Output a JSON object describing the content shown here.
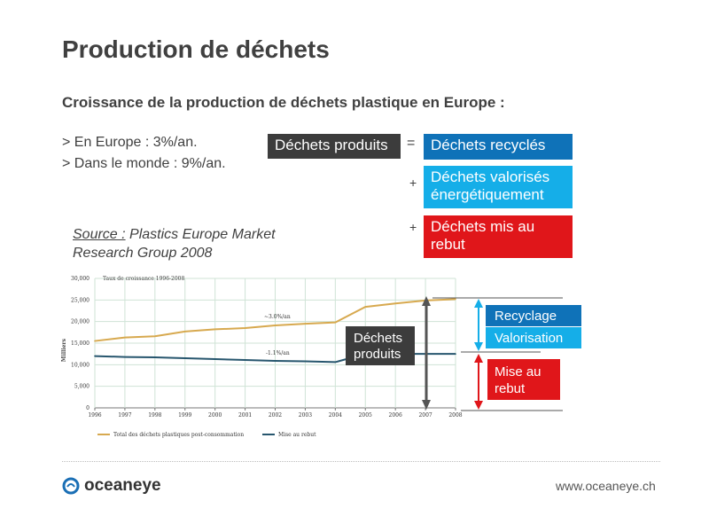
{
  "slide": {
    "title": "Production de déchets",
    "subtitle": "Croissance de la production de déchets plastique en Europe :",
    "stats": [
      "> En Europe : 3%/an.",
      "> Dans le monde : 9%/an."
    ]
  },
  "equation": {
    "produits": "Déchets produits",
    "equals": "=",
    "plus": "+",
    "recycles": "Déchets recyclés",
    "valorises_line1": "Déchets valorisés",
    "valorises_line2": "énergétiquement",
    "rebut_line1": "Déchets mis au",
    "rebut_line2": "rebut"
  },
  "source": {
    "label": "Source :",
    "line1": " Plastics Europe Market",
    "line2": "Research Group 2008"
  },
  "chart_data": {
    "type": "line",
    "title": "Taux de croissance 1996-2008",
    "ylabel": "Milliers",
    "ylim": [
      0,
      30000
    ],
    "yticks": [
      "0",
      "5,000",
      "10,000",
      "15,000",
      "20,000",
      "25,000",
      "30,000"
    ],
    "x": [
      "1996",
      "1997",
      "1998",
      "1999",
      "2000",
      "2001",
      "2002",
      "2003",
      "2004",
      "2005",
      "2006",
      "2007",
      "2008"
    ],
    "series": [
      {
        "name": "Total des déchets plastiques post-consommation",
        "color": "#d7a94f",
        "values": [
          15500,
          16300,
          16600,
          17700,
          18200,
          18500,
          19100,
          19500,
          19800,
          23400,
          24200,
          24900,
          25200
        ]
      },
      {
        "name": "Mise au rebut",
        "color": "#27566e",
        "values": [
          12000,
          11800,
          11700,
          11500,
          11300,
          11100,
          10900,
          10800,
          10600,
          12500,
          12500,
          12500,
          12500
        ]
      }
    ],
    "annotations": [
      "~3.0%/an",
      "-1.1%/an"
    ],
    "grid": true,
    "legend": "bottom"
  },
  "overlay": {
    "produits_line1": "Déchets",
    "produits_line2": "produits",
    "recycling": "Recyclage",
    "valorisation": "Valorisation",
    "mise_line1": "Mise au",
    "mise_line2": "rebut",
    "colors": {
      "dark": "#3c3c3c",
      "blue": "#0f72b8",
      "cyan": "#15aee8",
      "red": "#e0161a"
    }
  },
  "footer": {
    "logo_text": "oceaneye",
    "website": "www.oceaneye.ch"
  }
}
